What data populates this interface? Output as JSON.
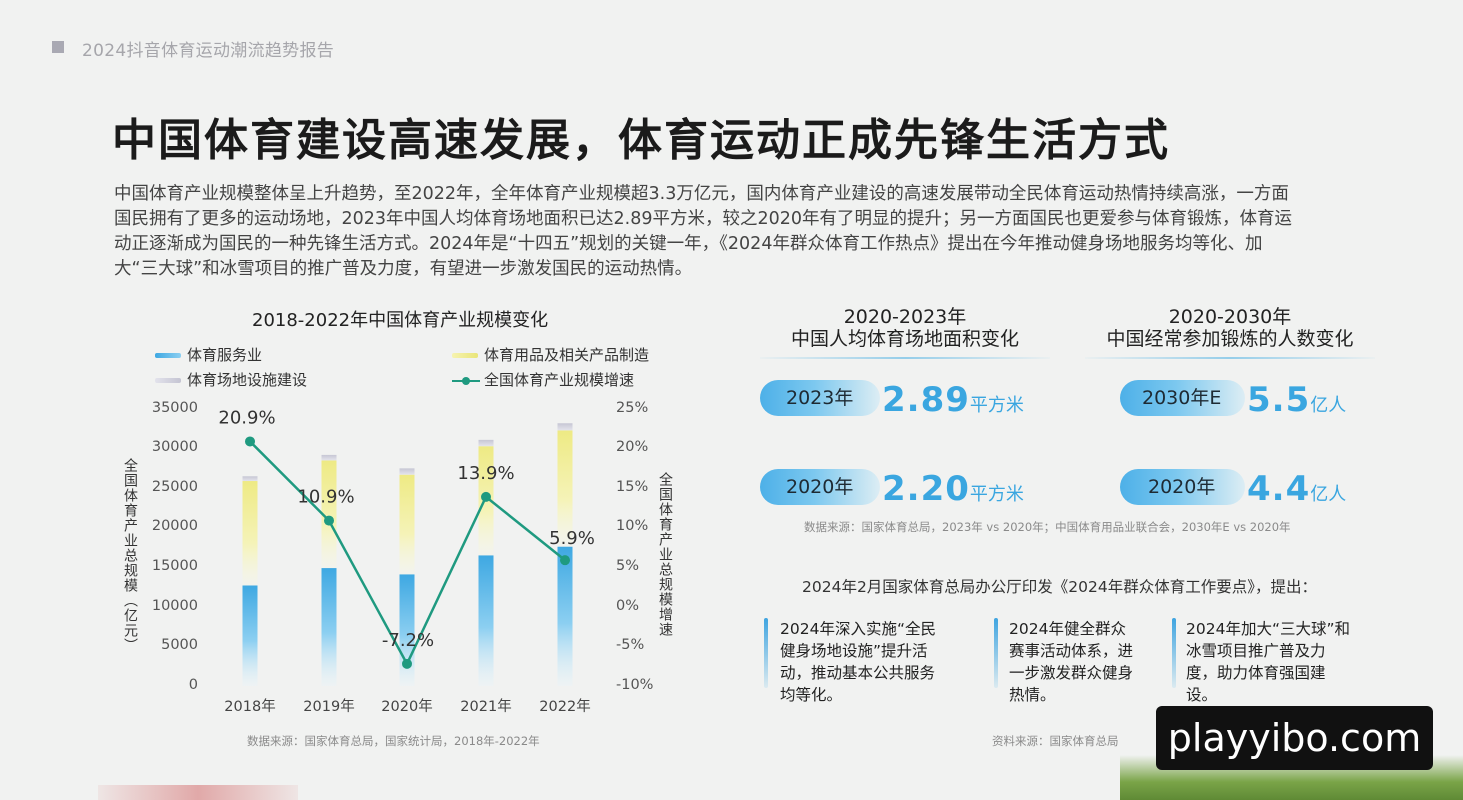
{
  "header": {
    "report_title": "2024抖音体育运动潮流趋势报告"
  },
  "headline": "中国体育建设高速发展，体育运动正成先锋生活方式",
  "intro_lines": [
    "中国体育产业规模整体呈上升趋势，至2022年，全年体育产业规模超3.3万亿元，国内体育产业建设的高速发展带动全民体育运动热情持续高涨，一方面",
    "国民拥有了更多的运动场地，2023年中国人均体育场地面积已达2.89平方米，较之2020年有了明显的提升；另一方面国民也更爱参与体育锻炼，体育运",
    "动正逐渐成为国民的一种先锋生活方式。2024年是“十四五”规划的关键一年，《2024年群众体育工作热点》提出在今年推动健身场地服务均等化、加",
    "大“三大球”和冰雪项目的推广普及力度，有望进一步激发国民的运动热情。"
  ],
  "chart_data": {
    "type": "bar",
    "title": "2018-2022年中国体育产业规模变化",
    "categories": [
      "2018年",
      "2019年",
      "2020年",
      "2021年",
      "2022年"
    ],
    "ylabel": "全国体育产业总规模（亿元）",
    "y2label": "全国体育产业总规模增速",
    "ylim": [
      0,
      35000
    ],
    "y2lim": [
      -10,
      25
    ],
    "y_ticks": [
      "35000",
      "30000",
      "25000",
      "20000",
      "15000",
      "10000",
      "5000",
      "0"
    ],
    "y2_ticks": [
      "25%",
      "20%",
      "15%",
      "10%",
      "5%",
      "0%",
      "-5%",
      "-10%"
    ],
    "stacked": true,
    "legend_position": "top",
    "series": [
      {
        "name": "体育服务业",
        "kind": "bar",
        "color": "#4fb2e6",
        "values": [
          12700,
          14900,
          14100,
          16500,
          17600
        ]
      },
      {
        "name": "体育用品及相关产品制造",
        "kind": "bar",
        "color": "#eeeb8c",
        "values": [
          13200,
          13600,
          12600,
          13800,
          14700
        ]
      },
      {
        "name": "体育场地设施建设",
        "kind": "bar",
        "color": "#c9c9d6",
        "values": [
          600,
          700,
          800,
          800,
          900
        ]
      },
      {
        "name": "全国体育产业规模增速",
        "kind": "line",
        "axis": "right",
        "color": "#1f9a80",
        "values": [
          20.9,
          10.9,
          -7.2,
          13.9,
          5.9
        ]
      }
    ],
    "data_labels": [
      "20.9%",
      "10.9%",
      "-7.2%",
      "13.9%",
      "5.9%"
    ],
    "source": "数据来源：国家体育总局，国家统计局，2018年-2022年"
  },
  "panel_area": {
    "title_line1": "2020-2023年",
    "title_line2": "中国人均体育场地面积变化",
    "rows": [
      {
        "year": "2023年",
        "value": "2.89",
        "unit": "平方米"
      },
      {
        "year": "2020年",
        "value": "2.20",
        "unit": "平方米"
      }
    ]
  },
  "panel_people": {
    "title_line1": "2020-2030年",
    "title_line2": "中国经常参加锻炼的人数变化",
    "rows": [
      {
        "year": "2030年E",
        "value": "5.5",
        "unit": "亿人"
      },
      {
        "year": "2020年",
        "value": "4.4",
        "unit": "亿人"
      }
    ]
  },
  "panels_source": "数据来源：国家体育总局，2023年 vs 2020年；中国体育用品业联合会，2030年E vs 2020年",
  "notice": {
    "lead": "2024年2月国家体育总局办公厅印发《2024年群众体育工作要点》，提出：",
    "cards": [
      {
        "text": "2024年深入实施“全民健身场地设施”提升活动，推动基本公共服务均等化。"
      },
      {
        "text": "2024年健全群众赛事活动体系，进一步激发群众健身热情。"
      },
      {
        "text": "2024年加大“三大球”和冰雪项目推广普及力度，助力体育强国建设。"
      }
    ],
    "source": "资料来源：国家体育总局"
  },
  "watermark": "playyibo.com"
}
